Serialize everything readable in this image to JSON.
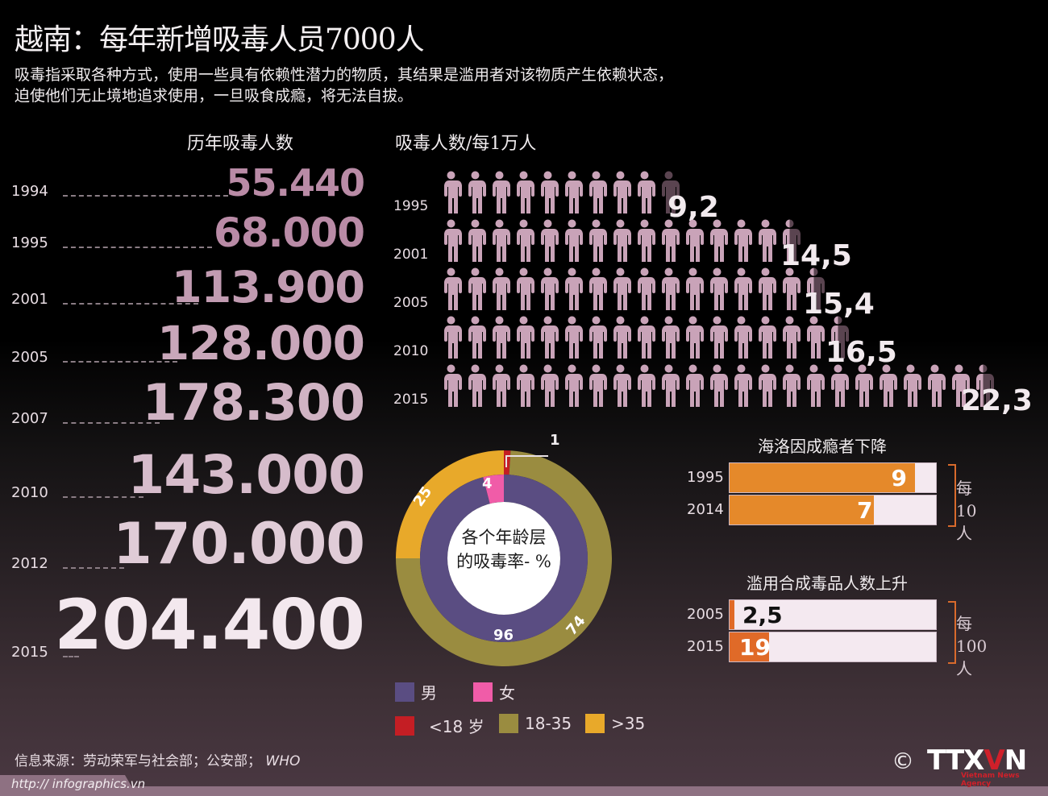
{
  "header": {
    "title": "越南：每年新增吸毒人员7000人",
    "description_lines": [
      "吸毒指采取各种方式，使用一些具有依赖性潜力的物质，其结果是滥用者对该物质产生依赖状态，",
      "迫使他们无止境地追求使用，一旦吸食成瘾，将无法自拔。"
    ]
  },
  "totals": {
    "title": "历年吸毒人数",
    "rows": [
      {
        "year": "1994",
        "value": "55.440"
      },
      {
        "year": "1995",
        "value": "68.000"
      },
      {
        "year": "2001",
        "value": "113.900"
      },
      {
        "year": "2005",
        "value": "128.000"
      },
      {
        "year": "2007",
        "value": "178.300"
      },
      {
        "year": "2010",
        "value": "143.000"
      },
      {
        "year": "2012",
        "value": "170.000"
      },
      {
        "year": "2015",
        "value": "204.400"
      }
    ]
  },
  "per10k": {
    "title": "吸毒人数/每1万人",
    "rows": [
      {
        "year": "1995",
        "value": "9,2"
      },
      {
        "year": "2001",
        "value": "14,5"
      },
      {
        "year": "2005",
        "value": "15,4"
      },
      {
        "year": "2010",
        "value": "16,5"
      },
      {
        "year": "2015",
        "value": "22,3"
      }
    ]
  },
  "donut": {
    "center_line1": "各个年龄层",
    "center_line2": "的吸毒率- %",
    "outer_labels": {
      "under18": "1",
      "age18_35": "74",
      "over35": "25"
    },
    "inner_labels": {
      "male": "96",
      "female": "4"
    }
  },
  "legend": {
    "male": "男",
    "female": "女",
    "under18": "<18 岁",
    "age18_35": "18-35",
    "over35": ">35"
  },
  "heroin": {
    "title": "海洛因成瘾者下降",
    "unit_line1": "每",
    "unit_line2": "10人",
    "rows": [
      {
        "year": "1995",
        "value": "9"
      },
      {
        "year": "2014",
        "value": "7"
      }
    ]
  },
  "synthetic": {
    "title": "滥用合成毒品人数上升",
    "unit_line1": "每",
    "unit_line2": "100人",
    "rows": [
      {
        "year": "2005",
        "value": "2,5"
      },
      {
        "year": "2015",
        "value": "19"
      }
    ]
  },
  "footer": {
    "source": "信息来源：劳动荣军与社会部；公安部；",
    "source_who": "WHO",
    "url": "http:// infographics.vn",
    "copyright": "©",
    "logo_main": "TTX",
    "logo_v": "V",
    "logo_n": "N",
    "logo_sub": "Vietnam News Agency"
  },
  "colors": {
    "numbers_pink": "#b98ba6",
    "person_pink": "#c9a3b8",
    "person_dark": "#5a4450",
    "male": "#5a4d82",
    "female": "#f05ca8",
    "under18": "#c41e24",
    "age18_35": "#9a8c40",
    "over35": "#e8a92a",
    "heroin_bar": "#e5892a",
    "synthetic_bar": "#e06a28"
  },
  "chart_data": [
    {
      "type": "table",
      "title": "历年吸毒人数",
      "categories": [
        "1994",
        "1995",
        "2001",
        "2005",
        "2007",
        "2010",
        "2012",
        "2015"
      ],
      "values": [
        55440,
        68000,
        113900,
        128000,
        178300,
        143000,
        170000,
        204400
      ]
    },
    {
      "type": "bar",
      "title": "吸毒人数/每1万人",
      "categories": [
        "1995",
        "2001",
        "2005",
        "2010",
        "2015"
      ],
      "values": [
        9.2,
        14.5,
        15.4,
        16.5,
        22.3
      ]
    },
    {
      "type": "pie",
      "title": "各个年龄层的吸毒率- %",
      "series": [
        {
          "name": "gender",
          "labels": [
            "男",
            "女"
          ],
          "values": [
            96,
            4
          ]
        },
        {
          "name": "age",
          "labels": [
            "<18 岁",
            "18-35",
            ">35"
          ],
          "values": [
            1,
            74,
            25
          ]
        }
      ]
    },
    {
      "type": "bar",
      "title": "海洛因成瘾者下降",
      "categories": [
        "1995",
        "2014"
      ],
      "values": [
        9,
        7
      ],
      "ylabel": "每10人",
      "ylim": [
        0,
        10
      ]
    },
    {
      "type": "bar",
      "title": "滥用合成毒品人数上升",
      "categories": [
        "2005",
        "2015"
      ],
      "values": [
        2.5,
        19
      ],
      "ylabel": "每100人",
      "ylim": [
        0,
        100
      ]
    }
  ]
}
